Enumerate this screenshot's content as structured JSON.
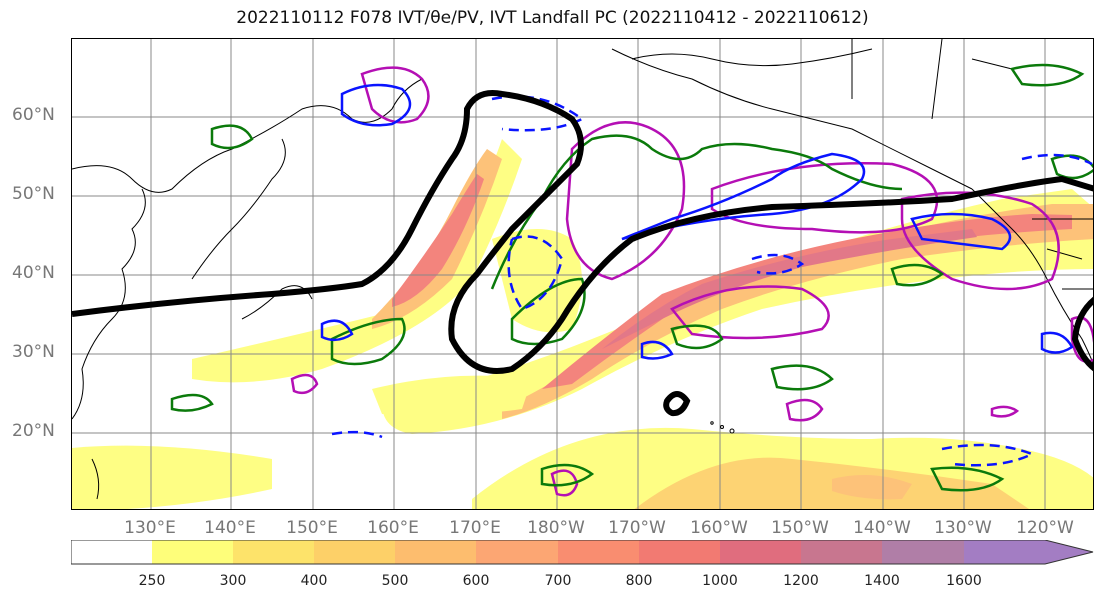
{
  "title": "2022110112 F078 IVT/θe/PV, IVT Landfall PC (2022110412 - 2022110612)",
  "latitude_labels": [
    "60°N",
    "50°N",
    "40°N",
    "30°N",
    "20°N"
  ],
  "longitude_labels": [
    "130°E",
    "140°E",
    "150°E",
    "160°E",
    "170°E",
    "180°W",
    "170°W",
    "160°W",
    "150°W",
    "140°W",
    "130°W",
    "120°W"
  ],
  "colorbar": {
    "ticks": [
      "250",
      "300",
      "400",
      "500",
      "600",
      "700",
      "800",
      "1000",
      "1200",
      "1400",
      "1600"
    ],
    "colors": [
      "#fefe7a",
      "#fde36a",
      "#fdd068",
      "#fdbd6e",
      "#fca673",
      "#f98d70",
      "#f27a72",
      "#e06d7e",
      "#c8768f",
      "#b07ea7",
      "#a37dc3"
    ]
  },
  "colors": {
    "ivt_contour": "#000000",
    "theta_e_contour": "#0b7a0b",
    "pv_contour_solid": "#0a14ff",
    "landfall_pc": "#b40fb4",
    "land_lines": "#000000",
    "grid": "#888888"
  }
}
